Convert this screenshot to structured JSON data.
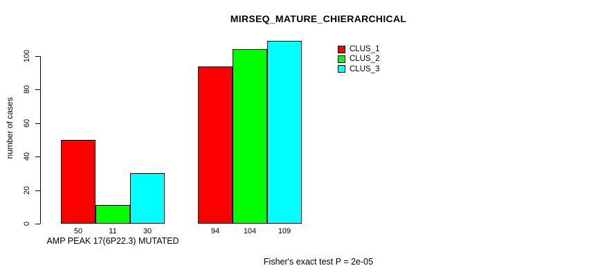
{
  "chart_data": {
    "type": "bar",
    "title": "MIRSEQ_MATURE_CHIERARCHICAL",
    "ylabel": "number of cases",
    "xlabel": "",
    "ylim": [
      0,
      110
    ],
    "yticks": [
      0,
      20,
      40,
      60,
      80,
      100
    ],
    "grid": false,
    "legend_position": "top-right",
    "categories": [
      "AMP PEAK 17(6P22.3) MUTATED",
      ""
    ],
    "series": [
      {
        "name": "CLUS_1",
        "color": "#ff0000",
        "values": [
          50,
          94
        ]
      },
      {
        "name": "CLUS_2",
        "color": "#00ff00",
        "values": [
          11,
          104
        ]
      },
      {
        "name": "CLUS_3",
        "color": "#00ffff",
        "values": [
          30,
          109
        ]
      }
    ],
    "footnote": "Fisher's exact test P = 2e-05"
  }
}
